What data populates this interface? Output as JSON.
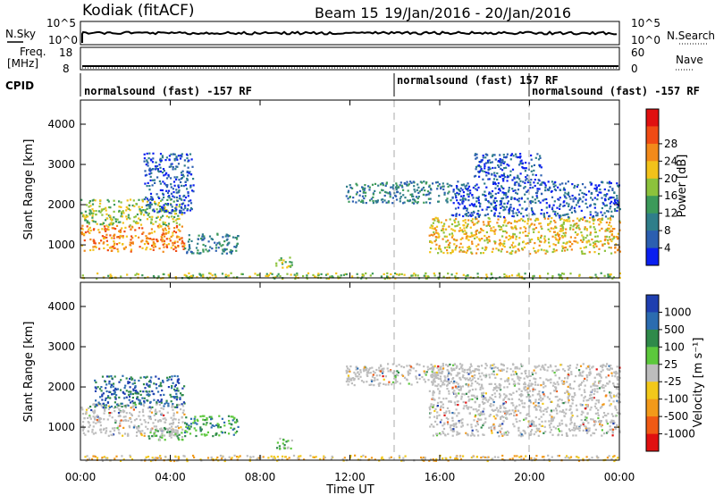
{
  "header": {
    "station": "Kodiak (fitACF)",
    "beam": "Beam 15",
    "date_range": "19/Jan/2016 - 20/Jan/2016"
  },
  "noise_panel": {
    "left_label": "N.Sky",
    "right_label": "N.Search",
    "left_ticks": [
      "10^5",
      "10^0"
    ],
    "right_ticks": [
      "10^5",
      "10^0"
    ]
  },
  "freq_panel": {
    "left_label": "Freq.",
    "left_unit": "[MHz]",
    "right_label": "Nave",
    "left_ticks": [
      "18",
      "8"
    ],
    "right_ticks": [
      "60",
      "0"
    ]
  },
  "cpid": {
    "label": "CPID",
    "segments": [
      {
        "text": "normalsound (fast) -157 RF",
        "start_hour": 0
      },
      {
        "text": "normalsound (fast) 157 RF",
        "start_hour": 14
      },
      {
        "text": "normalsound (fast) -157 RF",
        "start_hour": 20
      }
    ]
  },
  "chart_data": [
    {
      "type": "heatmap",
      "name": "power",
      "ylabel": "Slant Range [km]",
      "yticks": [
        1000,
        2000,
        3000,
        4000
      ],
      "ylim": [
        180,
        4600
      ],
      "xlim_hours": [
        0,
        24
      ],
      "colorbar": {
        "label": "Power [dB]",
        "ticks": [
          "4",
          "8",
          "12",
          "16",
          "20",
          "24",
          "28"
        ],
        "colors": [
          "#0a1ff0",
          "#2b5fb0",
          "#2f7e8a",
          "#3c9a5a",
          "#8cc23c",
          "#f2c21a",
          "#f28a1a",
          "#f04b14",
          "#e01010"
        ]
      },
      "regions": [
        {
          "t0": 0.0,
          "t1": 4.6,
          "r0": 850,
          "r1": 1500,
          "level": 6
        },
        {
          "t0": 0.0,
          "t1": 4.5,
          "r0": 1500,
          "r1": 2150,
          "level": 4
        },
        {
          "t0": 2.8,
          "t1": 5.0,
          "r0": 1800,
          "r1": 3300,
          "level": 1
        },
        {
          "t0": 4.6,
          "t1": 7.0,
          "r0": 800,
          "r1": 1300,
          "level": 2
        },
        {
          "t0": 8.6,
          "t1": 9.4,
          "r0": 450,
          "r1": 750,
          "level": 4
        },
        {
          "t0": 11.8,
          "t1": 16.5,
          "r0": 2050,
          "r1": 2600,
          "level": 2
        },
        {
          "t0": 15.5,
          "t1": 24.0,
          "r0": 800,
          "r1": 1700,
          "level": 5
        },
        {
          "t0": 16.5,
          "t1": 24.0,
          "r0": 1700,
          "r1": 2600,
          "level": 1
        },
        {
          "t0": 17.5,
          "t1": 20.5,
          "r0": 2600,
          "r1": 3300,
          "level": 1
        },
        {
          "t0": 0.0,
          "t1": 24.0,
          "r0": 180,
          "r1": 320,
          "level": 4
        }
      ]
    },
    {
      "type": "heatmap",
      "name": "velocity",
      "ylabel": "Slant Range [km]",
      "xlabel": "Time UT",
      "yticks": [
        1000,
        2000,
        3000,
        4000
      ],
      "ylim": [
        180,
        4600
      ],
      "xlim_hours": [
        0,
        24
      ],
      "xticks": [
        "00:00",
        "04:00",
        "08:00",
        "12:00",
        "16:00",
        "20:00",
        "00:00"
      ],
      "colorbar": {
        "label": "Velocity [m s⁻¹]",
        "ticks": [
          "1000",
          "500",
          "100",
          "25",
          "-25",
          "-100",
          "-500",
          "-1000"
        ],
        "colors": [
          "#1f3fb0",
          "#2b6cb0",
          "#2f8a4a",
          "#5cc83c",
          "#bdbdbd",
          "#f2c81a",
          "#f29a1a",
          "#f05a14",
          "#e01010"
        ]
      },
      "regions": [
        {
          "t0": 0.0,
          "t1": 4.6,
          "r0": 800,
          "r1": 1600,
          "level": 4
        },
        {
          "t0": 0.6,
          "t1": 4.6,
          "r0": 1500,
          "r1": 2300,
          "level": 1
        },
        {
          "t0": 3.0,
          "t1": 5.0,
          "r0": 700,
          "r1": 1000,
          "level": 3
        },
        {
          "t0": 4.6,
          "t1": 7.0,
          "r0": 800,
          "r1": 1300,
          "level": 2
        },
        {
          "t0": 8.6,
          "t1": 9.4,
          "r0": 450,
          "r1": 750,
          "level": 3
        },
        {
          "t0": 11.8,
          "t1": 16.5,
          "r0": 2050,
          "r1": 2600,
          "level": 4
        },
        {
          "t0": 15.5,
          "t1": 24.0,
          "r0": 800,
          "r1": 2600,
          "level": 4
        },
        {
          "t0": 0.0,
          "t1": 24.0,
          "r0": 180,
          "r1": 320,
          "level": 5
        }
      ]
    }
  ]
}
